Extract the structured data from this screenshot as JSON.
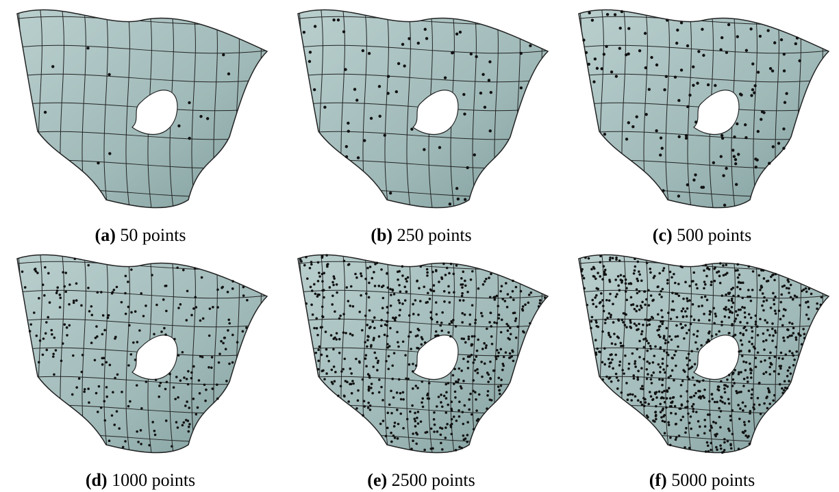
{
  "panels": [
    {
      "label": "(a)",
      "caption": "50 points"
    },
    {
      "label": "(b)",
      "caption": "250 points"
    },
    {
      "label": "(c)",
      "caption": "500 points"
    },
    {
      "label": "(d)",
      "caption": "1000 points"
    },
    {
      "label": "(e)",
      "caption": "2500 points"
    },
    {
      "label": "(f)",
      "caption": "5000 points"
    }
  ]
}
